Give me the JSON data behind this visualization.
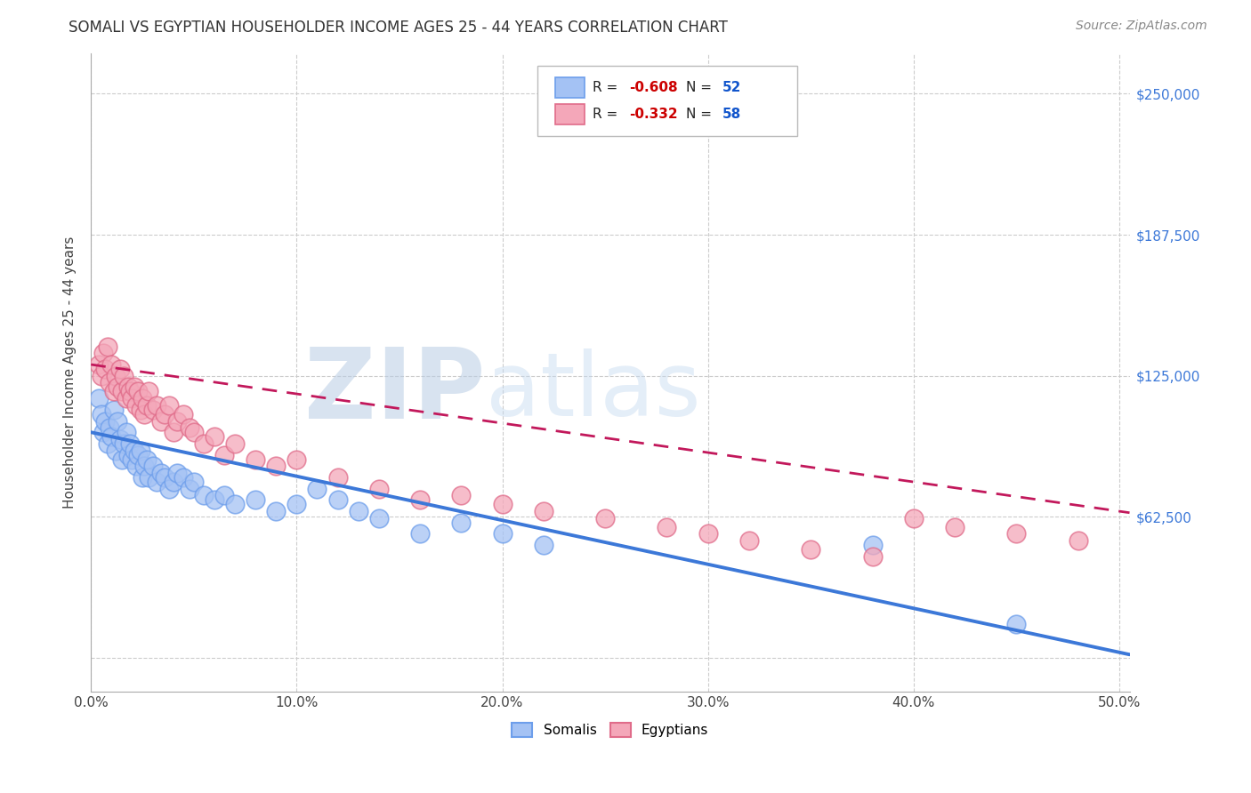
{
  "title": "SOMALI VS EGYPTIAN HOUSEHOLDER INCOME AGES 25 - 44 YEARS CORRELATION CHART",
  "source": "Source: ZipAtlas.com",
  "xlabel_ticks": [
    "0.0%",
    "10.0%",
    "20.0%",
    "30.0%",
    "40.0%",
    "50.0%"
  ],
  "ylabel_label": "Householder Income Ages 25 - 44 years",
  "ylabel_tick_labels": [
    "",
    "$62,500",
    "$125,000",
    "$187,500",
    "$250,000"
  ],
  "xlim": [
    0.0,
    0.505
  ],
  "ylim": [
    -15000,
    268000
  ],
  "somali_R": -0.608,
  "somali_N": 52,
  "egyptian_R": -0.332,
  "egyptian_N": 58,
  "somali_color": "#a4c2f4",
  "somali_edge_color": "#6d9eeb",
  "somali_line_color": "#3c78d8",
  "egyptian_color": "#f4a7b9",
  "egyptian_edge_color": "#e06c8a",
  "egyptian_line_color": "#c2185b",
  "legend_R_color": "#cc0000",
  "legend_N_color": "#1155cc",
  "watermark_ZIP": "#b8cfe8",
  "watermark_atlas": "#c5daf0",
  "ytick_positions": [
    0,
    62500,
    125000,
    187500,
    250000
  ],
  "xtick_positions": [
    0.0,
    0.1,
    0.2,
    0.3,
    0.4,
    0.5
  ],
  "somali_line_intercept": 100000,
  "somali_line_slope": -195000,
  "egyptian_line_intercept": 130000,
  "egyptian_line_slope": -130000,
  "somali_x": [
    0.004,
    0.005,
    0.006,
    0.007,
    0.008,
    0.009,
    0.01,
    0.011,
    0.012,
    0.013,
    0.014,
    0.015,
    0.016,
    0.017,
    0.018,
    0.019,
    0.02,
    0.021,
    0.022,
    0.023,
    0.024,
    0.025,
    0.026,
    0.027,
    0.028,
    0.03,
    0.032,
    0.034,
    0.036,
    0.038,
    0.04,
    0.042,
    0.045,
    0.048,
    0.05,
    0.055,
    0.06,
    0.065,
    0.07,
    0.08,
    0.09,
    0.1,
    0.11,
    0.12,
    0.13,
    0.14,
    0.16,
    0.18,
    0.2,
    0.22,
    0.38,
    0.45
  ],
  "somali_y": [
    115000,
    108000,
    100000,
    105000,
    95000,
    102000,
    98000,
    110000,
    92000,
    105000,
    97000,
    88000,
    95000,
    100000,
    90000,
    95000,
    88000,
    92000,
    85000,
    90000,
    92000,
    80000,
    85000,
    88000,
    80000,
    85000,
    78000,
    82000,
    80000,
    75000,
    78000,
    82000,
    80000,
    75000,
    78000,
    72000,
    70000,
    72000,
    68000,
    70000,
    65000,
    68000,
    75000,
    70000,
    65000,
    62000,
    55000,
    60000,
    55000,
    50000,
    50000,
    15000
  ],
  "egyptian_x": [
    0.004,
    0.005,
    0.006,
    0.007,
    0.008,
    0.009,
    0.01,
    0.011,
    0.012,
    0.013,
    0.014,
    0.015,
    0.016,
    0.017,
    0.018,
    0.019,
    0.02,
    0.021,
    0.022,
    0.023,
    0.024,
    0.025,
    0.026,
    0.027,
    0.028,
    0.03,
    0.032,
    0.034,
    0.036,
    0.038,
    0.04,
    0.042,
    0.045,
    0.048,
    0.05,
    0.055,
    0.06,
    0.065,
    0.07,
    0.08,
    0.09,
    0.1,
    0.12,
    0.14,
    0.16,
    0.18,
    0.2,
    0.22,
    0.25,
    0.28,
    0.3,
    0.32,
    0.35,
    0.38,
    0.4,
    0.42,
    0.45,
    0.48
  ],
  "egyptian_y": [
    130000,
    125000,
    135000,
    128000,
    138000,
    122000,
    130000,
    118000,
    125000,
    120000,
    128000,
    118000,
    125000,
    115000,
    120000,
    118000,
    115000,
    120000,
    112000,
    118000,
    110000,
    115000,
    108000,
    112000,
    118000,
    110000,
    112000,
    105000,
    108000,
    112000,
    100000,
    105000,
    108000,
    102000,
    100000,
    95000,
    98000,
    90000,
    95000,
    88000,
    85000,
    88000,
    80000,
    75000,
    70000,
    72000,
    68000,
    65000,
    62000,
    58000,
    55000,
    52000,
    48000,
    45000,
    62000,
    58000,
    55000,
    52000
  ]
}
